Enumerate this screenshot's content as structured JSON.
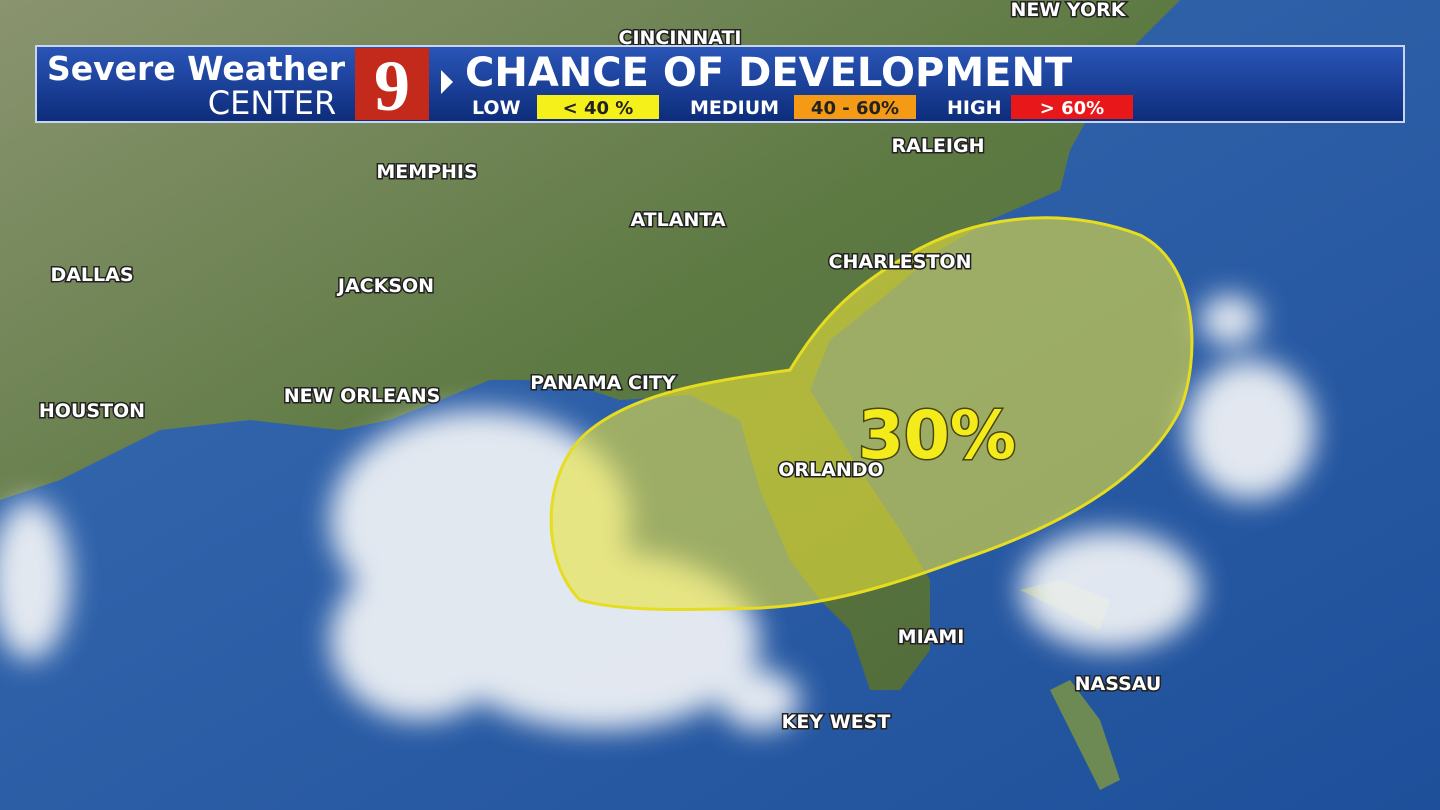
{
  "header": {
    "brand_line1": "Severe Weather",
    "brand_line2": "CENTER",
    "channel": "9",
    "title": "CHANCE OF DEVELOPMENT",
    "legend": [
      {
        "level": "LOW",
        "range": "< 40 %"
      },
      {
        "level": "MEDIUM",
        "range": "40 - 60%"
      },
      {
        "level": "HIGH",
        "range": "> 60%"
      }
    ]
  },
  "map": {
    "cities": [
      "CINCINNATI",
      "NEW YORK",
      "RALEIGH",
      "MEMPHIS",
      "ATLANTA",
      "CHARLESTON",
      "DALLAS",
      "JACKSON",
      "HOUSTON",
      "NEW ORLEANS",
      "PANAMA CITY",
      "ORLANDO",
      "MIAMI",
      "KEY WEST",
      "NASSAU"
    ],
    "area_label": "30%"
  }
}
